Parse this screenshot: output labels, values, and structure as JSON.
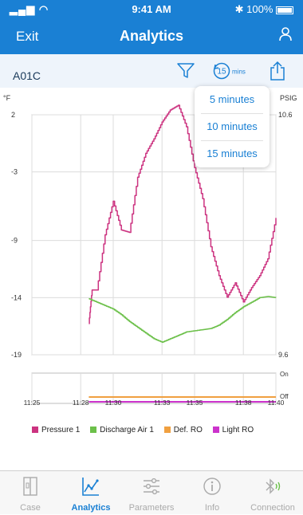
{
  "status_bar": {
    "time": "9:41 AM",
    "battery": "100%",
    "signal": "▂▄▆ ◠"
  },
  "nav": {
    "left_label": "Exit",
    "title": "Analytics"
  },
  "toolbar": {
    "device": "A01C",
    "interval_badge": "15",
    "interval_unit": "mins"
  },
  "dropdown": {
    "options": [
      "5 minutes",
      "10 minutes",
      "15 minutes"
    ]
  },
  "chart_data": {
    "type": "line",
    "left_unit": "°F",
    "right_unit": "PSIG",
    "left_ticks": [
      "2",
      "-3",
      "-9",
      "-14",
      "-19"
    ],
    "right_ticks": [
      "10.6",
      "9.6"
    ],
    "ylim_left": [
      -19,
      2
    ],
    "ylim_right": [
      9.6,
      10.6
    ],
    "x_ticks": [
      "11:25",
      "11:28",
      "11:30",
      "11:33",
      "11:35",
      "11:38",
      "11:40"
    ],
    "state_labels": [
      "On",
      "Off"
    ],
    "series": [
      {
        "name": "Pressure 1",
        "color": "#cc3380",
        "axis": "right",
        "x": [
          "11:28.5",
          "11:28.7",
          "11:29",
          "11:29.5",
          "11:30",
          "11:30.5",
          "11:31",
          "11:31.5",
          "11:32",
          "11:32.5",
          "11:33",
          "11:33.5",
          "11:34",
          "11:34.5",
          "11:35",
          "11:35.5",
          "11:36",
          "11:36.5",
          "11:37",
          "11:37.5",
          "11:38",
          "11:38.5",
          "11:39",
          "11:39.5",
          "11:40"
        ],
        "values": [
          9.73,
          9.87,
          9.87,
          10.1,
          10.24,
          10.12,
          10.11,
          10.34,
          10.44,
          10.5,
          10.57,
          10.62,
          10.64,
          10.55,
          10.38,
          10.25,
          10.05,
          9.93,
          9.84,
          9.9,
          9.82,
          9.88,
          9.93,
          10.0,
          10.17
        ]
      },
      {
        "name": "Discharge Air 1",
        "color": "#6cc04a",
        "axis": "left",
        "x": [
          "11:28.5",
          "11:29",
          "11:29.5",
          "11:30",
          "11:30.5",
          "11:31",
          "11:31.5",
          "11:32",
          "11:32.5",
          "11:33",
          "11:33.5",
          "11:34",
          "11:34.5",
          "11:35",
          "11:35.5",
          "11:36",
          "11:36.5",
          "11:37",
          "11:37.5",
          "11:38",
          "11:38.5",
          "11:39",
          "11:39.5",
          "11:40"
        ],
        "values": [
          -14.1,
          -14.4,
          -14.7,
          -15.0,
          -15.5,
          -16.1,
          -16.6,
          -17.1,
          -17.6,
          -17.9,
          -17.6,
          -17.3,
          -17.0,
          -16.9,
          -16.8,
          -16.7,
          -16.4,
          -15.9,
          -15.3,
          -14.8,
          -14.4,
          -14.0,
          -13.9,
          -14.0
        ]
      },
      {
        "name": "Def. RO",
        "color": "#f0a040",
        "axis": "state",
        "x": [
          "11:28.5",
          "11:40"
        ],
        "values": [
          "Off",
          "Off"
        ]
      },
      {
        "name": "Light RO",
        "color": "#cc33cc",
        "axis": "state",
        "x": [
          "11:28.5",
          "11:40"
        ],
        "values": [
          "Off",
          "Off"
        ]
      }
    ],
    "grid": true,
    "legend": "bottom"
  },
  "tabs": [
    {
      "label": "Case",
      "icon": "case-icon",
      "active": false
    },
    {
      "label": "Analytics",
      "icon": "analytics-icon",
      "active": true
    },
    {
      "label": "Parameters",
      "icon": "parameters-icon",
      "active": false
    },
    {
      "label": "Info",
      "icon": "info-icon",
      "active": false
    },
    {
      "label": "Connection",
      "icon": "connection-icon",
      "active": false
    }
  ],
  "colors": {
    "accent": "#1a80d4",
    "pressure": "#cc3380",
    "discharge": "#6cc04a",
    "defrost": "#f0a040",
    "light": "#cc33cc"
  }
}
